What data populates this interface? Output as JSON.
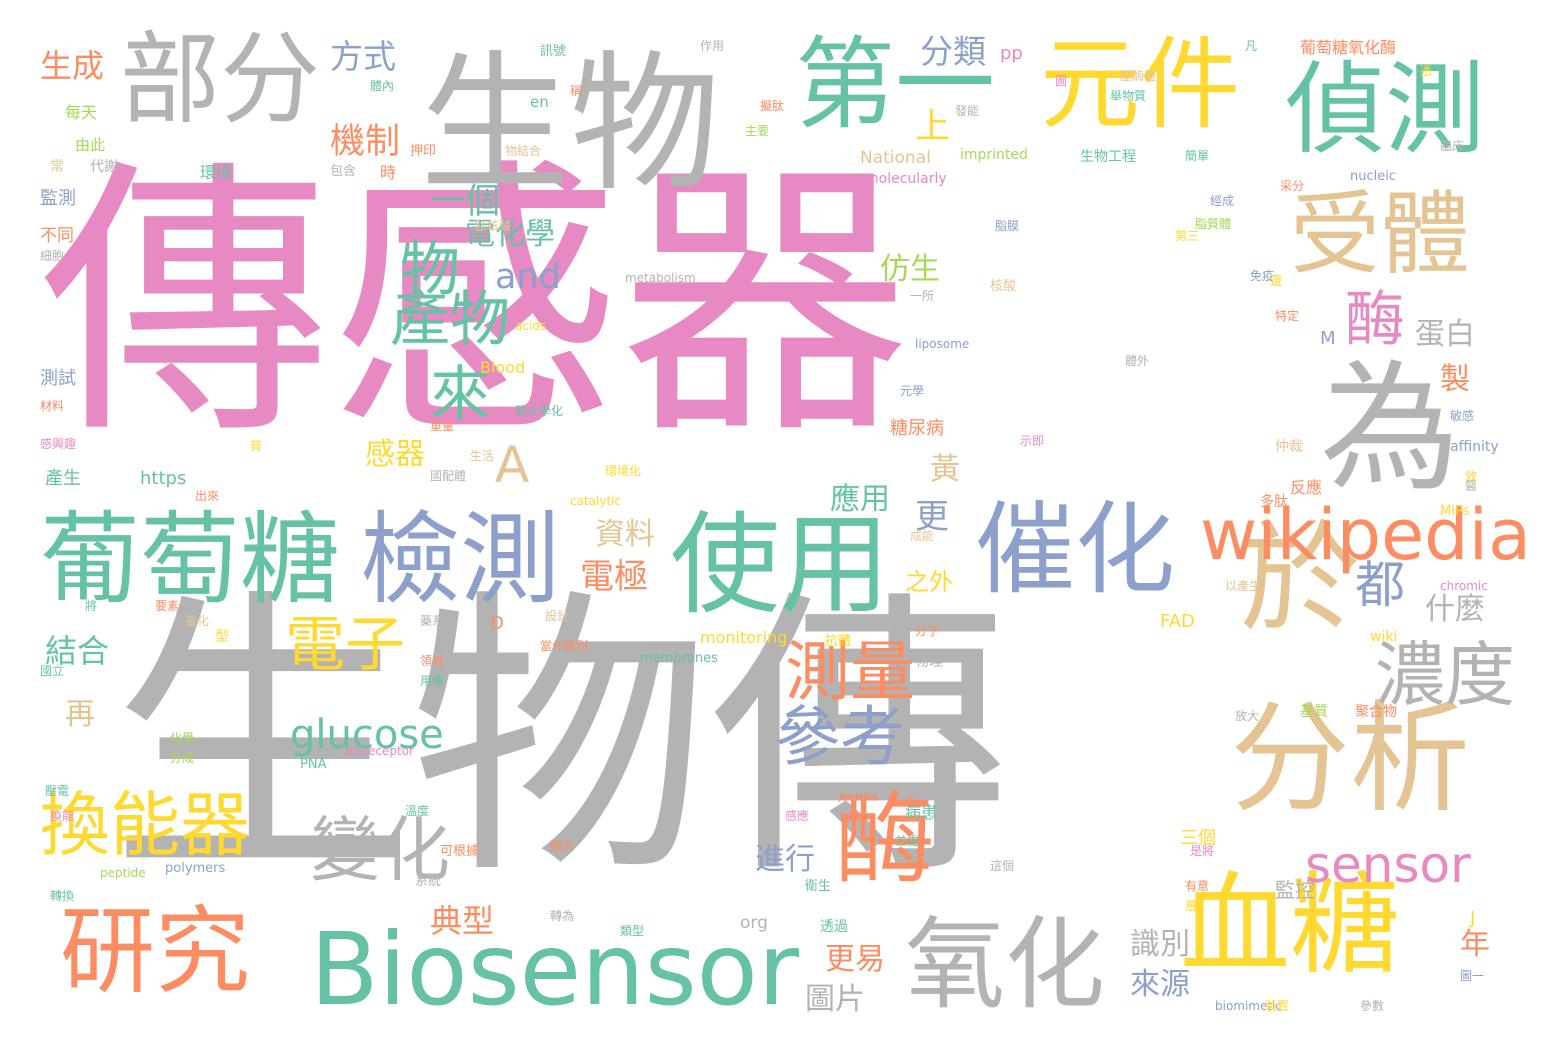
{
  "palette": {
    "pink": "#e78ac3",
    "gray": "#b3b3b3",
    "teal": "#66c2a5",
    "orange": "#fc8d62",
    "blue": "#8da0cb",
    "yellow": "#ffd92f",
    "tan": "#e5c494",
    "green": "#a6d854"
  },
  "words": [
    "傳感器",
    "生物傳",
    "生物",
    "部分",
    "第一",
    "元件",
    "偵測",
    "受體",
    "為",
    "於",
    "分析",
    "催化",
    "使用",
    "檢測",
    "葡萄糖",
    "wikipedia",
    "研究",
    "Biosensor",
    "氧化",
    "血糖",
    "酶",
    "換能器",
    "變化",
    "參考",
    "測量",
    "濃度",
    "sensor",
    "電子",
    "glucose",
    "產物",
    "來",
    "物",
    "酶",
    "A",
    "and",
    "都",
    "電化學",
    "一個",
    "機制",
    "上",
    "方式",
    "分類",
    "生成",
    "結合",
    "典型",
    "進行",
    "電極",
    "資料",
    "仿生",
    "應用",
    "更",
    "黃",
    "製",
    "蛋白",
    "什麼",
    "識別",
    "來源",
    "年",
    "更易",
    "圖片",
    "感器",
    "監控",
    "之外",
    "再",
    "葡萄糖氧化酶",
    "National",
    "molecularly",
    "imprinted",
    "生物工程",
    "肽核酸",
    "https",
    "metabolism",
    "liposome",
    "Blood",
    "monitoring",
    "membranes",
    "bioreceptor",
    "aptamer",
    "peptide",
    "polymers",
    "PNA",
    "catalytic",
    "MIPs",
    "affinity",
    "chromic",
    "nucleic",
    "acids",
    "wiki",
    "FAD",
    "org",
    "biomimetic",
    "en",
    "pp",
    "M",
    "D",
    "J",
    "每天",
    "由此",
    "常",
    "代謝",
    "監測",
    "不同",
    "細胞",
    "測試",
    "材料",
    "感興趣",
    "產生",
    "出來",
    "將",
    "要素",
    "量化",
    "型",
    "國立",
    "化學",
    "分成",
    "壓電",
    "換能",
    "溫度",
    "可根據",
    "顯示",
    "感應",
    "並處",
    "系統",
    "轉換",
    "轉為",
    "類型",
    "透過",
    "衛生",
    "三個",
    "是將",
    "有意",
    "層",
    "這個",
    "裝置",
    "參數",
    "圖一",
    "放大",
    "基質",
    "聚合物",
    "中",
    "分子",
    "物理",
    "抗體",
    "當作識別",
    "設計",
    "領域",
    "用傳",
    "藥系",
    "環境化",
    "成能",
    "以產生",
    "多肽",
    "脂膜",
    "脂質體",
    "核酸",
    "第三",
    "一所",
    "免疫",
    "體外",
    "特定",
    "示即",
    "敏感",
    "仲裁",
    "經成",
    "采分",
    "還",
    "元學",
    "生活",
    "重量",
    "範大學化",
    "國配體",
    "作用",
    "訊號",
    "稱",
    "主要",
    "體內",
    "押印",
    "物結合",
    "包含",
    "時",
    "環境",
    "擬肽",
    "壓酶體",
    "簡單",
    "發能",
    "圖",
    "舉物質",
    "凡",
    "憑",
    "臨床",
    "糖尿病",
    "反應",
    "病患",
    "質",
    "醫",
    "效"
  ]
}
